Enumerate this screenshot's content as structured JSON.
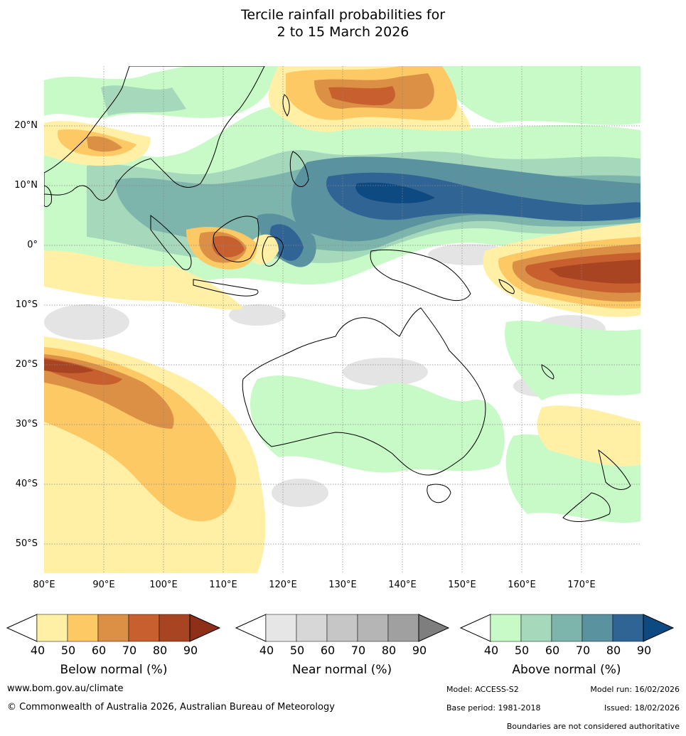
{
  "title": {
    "line1": "Tercile rainfall probabilities for",
    "line2": "2 to 15 March 2026"
  },
  "axes": {
    "lat_labels": [
      "20°N",
      "10°N",
      "0°",
      "10°S",
      "20°S",
      "30°S",
      "40°S",
      "50°S"
    ],
    "lon_labels": [
      "80°E",
      "90°E",
      "100°E",
      "110°E",
      "120°E",
      "130°E",
      "140°E",
      "150°E",
      "160°E",
      "170°E"
    ]
  },
  "colorbars": [
    {
      "name": "below",
      "title": "Below normal (%)",
      "ticks": [
        "40",
        "50",
        "60",
        "70",
        "80",
        "90"
      ],
      "colors": [
        "#fff0a6",
        "#fdc964",
        "#dc9046",
        "#c7602e",
        "#a84422",
        "#8e2f17"
      ]
    },
    {
      "name": "near",
      "title": "Near normal (%)",
      "ticks": [
        "40",
        "50",
        "60",
        "70",
        "80",
        "90"
      ],
      "colors": [
        "#e6e6e6",
        "#d7d7d7",
        "#c6c6c6",
        "#b5b5b5",
        "#a0a0a0",
        "#7e7e7e"
      ]
    },
    {
      "name": "above",
      "title": "Above normal (%)",
      "ticks": [
        "40",
        "50",
        "60",
        "70",
        "80",
        "90"
      ],
      "colors": [
        "#c8fac8",
        "#a6d9bc",
        "#7db5ac",
        "#5a92a0",
        "#2f6494",
        "#0e4a82"
      ]
    }
  ],
  "footer": {
    "website": "www.bom.gov.au/climate",
    "copyright": "© Commonwealth of Australia 2026, Australian Bureau of Meteorology",
    "model": "Model: ACCESS-S2",
    "model_run": "Model run: 16/02/2026",
    "base_period": "Base period: 1981-2018",
    "issued": "Issued: 18/02/2026",
    "disclaimer": "Boundaries are not considered authoritative"
  }
}
